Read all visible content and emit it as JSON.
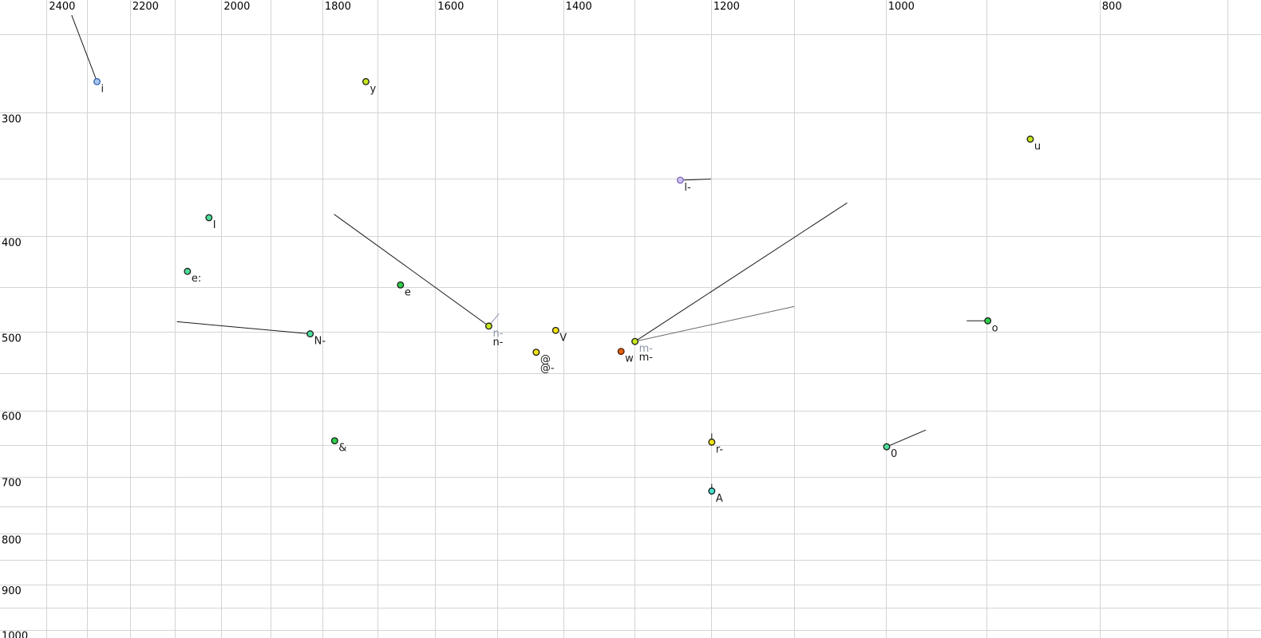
{
  "chart_data": {
    "type": "scatter",
    "title": "",
    "description": "Vowel formant plot: F2 (Hz) on reversed logarithmic x-axis labeled along the top, F1 (Hz) on logarithmic y-axis labeled along the left. Phonetic symbol labels sit below-right of each point; some points carry formant-trajectory line segments.",
    "x_axis": {
      "labels_position": "top",
      "ticks_labeled": [
        2400,
        2200,
        2000,
        1800,
        1600,
        1400,
        1200,
        1000,
        800
      ],
      "gridline_min": 700,
      "gridline_max": 2400,
      "gridline_step": 100,
      "scale": "log",
      "reversed": true,
      "visible_domain": [
        2519,
        676
      ]
    },
    "y_axis": {
      "labels_position": "left",
      "ticks_labeled": [
        300,
        400,
        500,
        600,
        700,
        800,
        900,
        1000
      ],
      "gridline_min": 250,
      "gridline_max": 1000,
      "gridline_step": 50,
      "scale": "log",
      "reversed": false,
      "visible_domain": [
        231,
        1020
      ]
    },
    "points": [
      {
        "label": "i",
        "f2": 2277,
        "f1": 279,
        "fill": "#a5c6ee",
        "stroke": "#2f5fae",
        "lines": [
          {
            "f2": 2338,
            "f1": 239,
            "color": "#1a1a1a"
          }
        ]
      },
      {
        "label": "y",
        "f2": 1720,
        "f1": 279,
        "fill": "#c6e81c",
        "stroke": "#1a1a1a"
      },
      {
        "label": "u",
        "f2": 860,
        "f1": 319,
        "fill": "#c6e81c",
        "stroke": "#1a1a1a"
      },
      {
        "label": "l-",
        "f2": 1239,
        "f1": 351,
        "fill": "#cdc2f0",
        "stroke": "#7a68b8",
        "lines": [
          {
            "f2": 1200,
            "f1": 350,
            "color": "#1a1a1a"
          }
        ]
      },
      {
        "label": "I",
        "f2": 2026,
        "f1": 383,
        "fill": "#4ae09a",
        "stroke": "#1a1a1a"
      },
      {
        "label": "e:",
        "f2": 2072,
        "f1": 434,
        "fill": "#4ae09a",
        "stroke": "#1a1a1a"
      },
      {
        "label": "e",
        "f2": 1659,
        "f1": 448,
        "fill": "#2ed04a",
        "stroke": "#1a1a1a"
      },
      {
        "label": "n-",
        "ghost_label": "n-",
        "f2": 1513,
        "f1": 493,
        "fill": "#c6e81c",
        "stroke": "#1a1a1a",
        "lines": [
          {
            "f2": 1778,
            "f1": 380,
            "color": "#1a1a1a"
          },
          {
            "f2": 1497,
            "f1": 479,
            "color": "#8a94a8"
          }
        ]
      },
      {
        "label": "N-",
        "f2": 1823,
        "f1": 502,
        "fill": "#4ae09a",
        "stroke": "#1a1a1a",
        "lines": [
          {
            "f2": 2095,
            "f1": 488,
            "color": "#1a1a1a"
          }
        ]
      },
      {
        "label": "V",
        "f2": 1411,
        "f1": 498,
        "fill": "#f0e010",
        "stroke": "#1a1a1a"
      },
      {
        "label": "@",
        "second_label": "@-",
        "f2": 1440,
        "f1": 524,
        "fill": "#f0e010",
        "stroke": "#1a1a1a"
      },
      {
        "label": "w",
        "f2": 1318,
        "f1": 523,
        "fill": "#e2600e",
        "stroke": "#4a1a00"
      },
      {
        "label": "m-",
        "ghost_label": "m-",
        "f2": 1299,
        "f1": 511,
        "fill": "#c6e81c",
        "stroke": "#1a1a1a",
        "lines": [
          {
            "f2": 1041,
            "f1": 370,
            "color": "#1a1a1a"
          },
          {
            "f2": 1100,
            "f1": 471,
            "color": "#6a6a6a"
          }
        ]
      },
      {
        "label": "&",
        "f2": 1777,
        "f1": 644,
        "fill": "#2ed04a",
        "stroke": "#1a1a1a"
      },
      {
        "label": "r-",
        "f2": 1199,
        "f1": 646,
        "fill": "#f0e010",
        "stroke": "#1a1a1a",
        "lines": [
          {
            "f2": 1199,
            "f1": 633,
            "color": "#1a1a1a"
          }
        ]
      },
      {
        "label": "A",
        "f2": 1199,
        "f1": 724,
        "fill": "#45e0cf",
        "stroke": "#1a1a1a",
        "lines": [
          {
            "f2": 1199,
            "f1": 712,
            "color": "#1a1a1a"
          }
        ]
      },
      {
        "label": "0",
        "f2": 999,
        "f1": 653,
        "fill": "#4ae09a",
        "stroke": "#1a1a1a",
        "lines": [
          {
            "f2": 959,
            "f1": 628,
            "color": "#1a1a1a"
          }
        ]
      },
      {
        "label": "o",
        "f2": 899,
        "f1": 487,
        "fill": "#2ed04a",
        "stroke": "#1a1a1a",
        "lines": [
          {
            "f2": 919,
            "f1": 487,
            "color": "#1a1a1a"
          }
        ]
      }
    ],
    "colors": {
      "background": "#ffffff",
      "grid": "#d4d4d4",
      "tick_label": "#000000",
      "point_label": "#1a1a1a",
      "ghost_label": "#8a94a8"
    }
  }
}
